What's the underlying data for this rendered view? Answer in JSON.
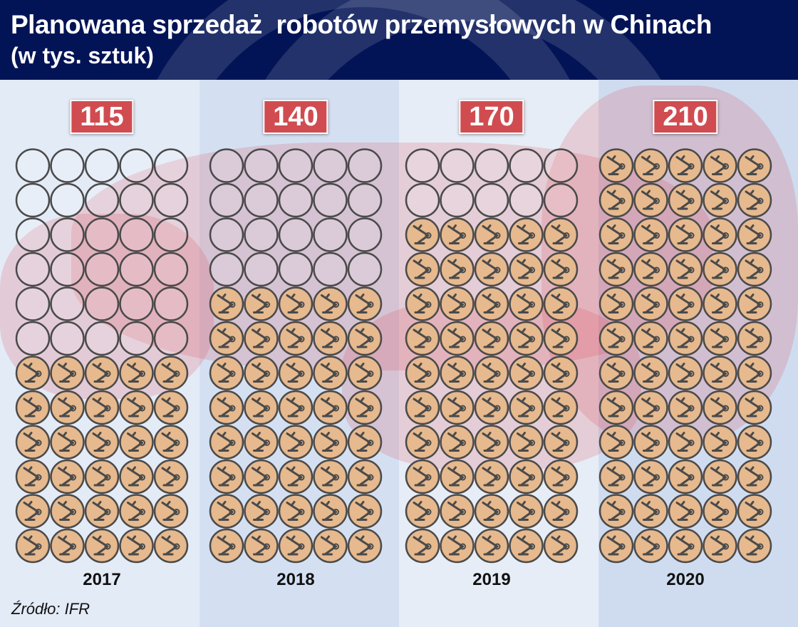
{
  "title": "Planowana sprzedaż  robotów przemysłowych w Chinach",
  "subtitle": "(w tys. sztuk)",
  "source": "Źródło: IFR",
  "colors": {
    "header": "#031456",
    "badge": "#d04c50",
    "icon_fill": "#e6b98e",
    "icon_stroke": "#4a4a4a"
  },
  "chart_data": {
    "type": "pictogram",
    "title": "Planowana sprzedaż  robotów przemysłowych w Chinach",
    "unit": "(w tys. sztuk)",
    "categories": [
      "2017",
      "2018",
      "2019",
      "2020"
    ],
    "values": [
      115,
      140,
      170,
      210
    ],
    "value_labels": [
      "115",
      "140",
      "170",
      "210"
    ],
    "icons_filled": [
      30,
      40,
      50,
      60
    ],
    "icons_total": 60,
    "icon": "industrial-robot-arm"
  }
}
